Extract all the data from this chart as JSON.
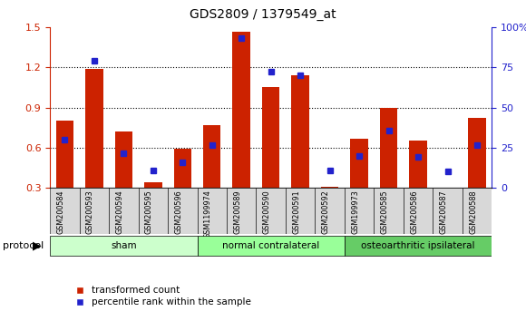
{
  "title": "GDS2809 / 1379549_at",
  "samples": [
    "GSM200584",
    "GSM200593",
    "GSM200594",
    "GSM200595",
    "GSM200596",
    "GSM1199974",
    "GSM200589",
    "GSM200590",
    "GSM200591",
    "GSM200592",
    "GSM199973",
    "GSM200585",
    "GSM200586",
    "GSM200587",
    "GSM200588"
  ],
  "red_values": [
    0.8,
    1.19,
    0.72,
    0.34,
    0.59,
    0.77,
    1.47,
    1.05,
    1.14,
    0.31,
    0.67,
    0.9,
    0.65,
    0.3,
    0.82
  ],
  "blue_left_pos": [
    0.66,
    1.25,
    0.56,
    0.43,
    0.49,
    0.62,
    1.42,
    1.17,
    1.14,
    0.43,
    0.54,
    0.73,
    0.53,
    0.42,
    0.62
  ],
  "blue_percentiles": [
    33,
    80,
    19,
    9,
    12,
    19,
    88,
    72,
    70,
    8,
    17,
    44,
    18,
    7,
    25
  ],
  "groups": [
    {
      "label": "sham",
      "start": 0,
      "end": 5,
      "color": "#ccffcc"
    },
    {
      "label": "normal contralateral",
      "start": 5,
      "end": 10,
      "color": "#99ff99"
    },
    {
      "label": "osteoarthritic ipsilateral",
      "start": 10,
      "end": 15,
      "color": "#66cc66"
    }
  ],
  "red_color": "#cc2200",
  "blue_color": "#2222cc",
  "ylim_left": [
    0.3,
    1.5
  ],
  "ylim_right": [
    0,
    100
  ],
  "yticks_left": [
    0.3,
    0.6,
    0.9,
    1.2,
    1.5
  ],
  "yticks_right": [
    0,
    25,
    50,
    75,
    100
  ],
  "grid_lines": [
    0.6,
    0.9,
    1.2
  ],
  "background_color": "#ffffff",
  "legend_items": [
    "transformed count",
    "percentile rank within the sample"
  ],
  "bar_width": 0.6,
  "tick_bg_color": "#d8d8d8"
}
